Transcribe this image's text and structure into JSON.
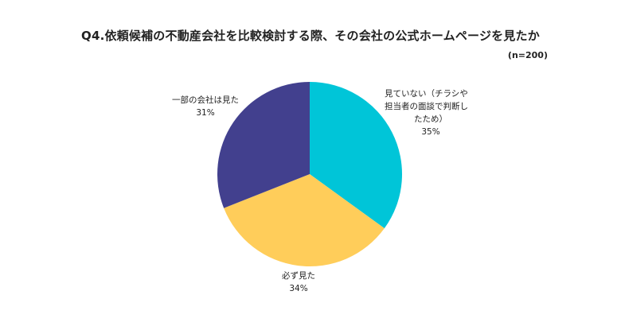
{
  "title": "Q4.依頼候補の不動産会社を比較検討する際、その会社の公式ホームページを見たか",
  "subtitle": "(n=200)",
  "chart_data": {
    "type": "pie",
    "title": "Q4.依頼候補の不動産会社を比較検討する際、その会社の公式ホームページを見たか",
    "subtitle": "(n=200)",
    "unit": "%",
    "start_angle_deg": 0,
    "direction": "clockwise",
    "slices": [
      {
        "label_lines": [
          "見ていない（チラシや",
          "担当者の面談で判断し",
          "たため）"
        ],
        "value": 35,
        "value_label": "35%",
        "color": "#00C5D8"
      },
      {
        "label_lines": [
          "必ず見た"
        ],
        "value": 34,
        "value_label": "34%",
        "color": "#FFCD5A"
      },
      {
        "label_lines": [
          "一部の会社は見た"
        ],
        "value": 31,
        "value_label": "31%",
        "color": "#42408E"
      }
    ]
  }
}
